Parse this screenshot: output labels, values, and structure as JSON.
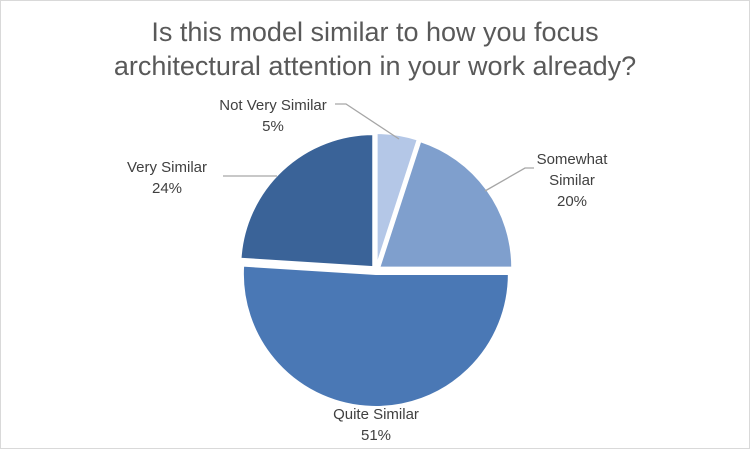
{
  "chart_data": {
    "type": "pie",
    "title_lines": [
      "Is this model similar to how you focus",
      "architectural attention in your work already?"
    ],
    "slices": [
      {
        "label": "Not Very Similar",
        "label_lines": [
          "Not Very Similar"
        ],
        "percent_label": "5%",
        "value": 5,
        "color": "#b4c7e7"
      },
      {
        "label": "Somewhat Similar",
        "label_lines": [
          "Somewhat",
          "Similar"
        ],
        "percent_label": "20%",
        "value": 20,
        "color": "#7f9fcd"
      },
      {
        "label": "Quite Similar",
        "label_lines": [
          "Quite Similar"
        ],
        "percent_label": "51%",
        "value": 51,
        "color": "#4a78b5"
      },
      {
        "label": "Very Similar",
        "label_lines": [
          "Very Similar"
        ],
        "percent_label": "24%",
        "value": 24,
        "color": "#3a6398"
      }
    ],
    "start_angle_deg": 0,
    "direction": "clockwise",
    "exploded": true,
    "legend": "none",
    "data_labels": "outside with leader lines"
  }
}
